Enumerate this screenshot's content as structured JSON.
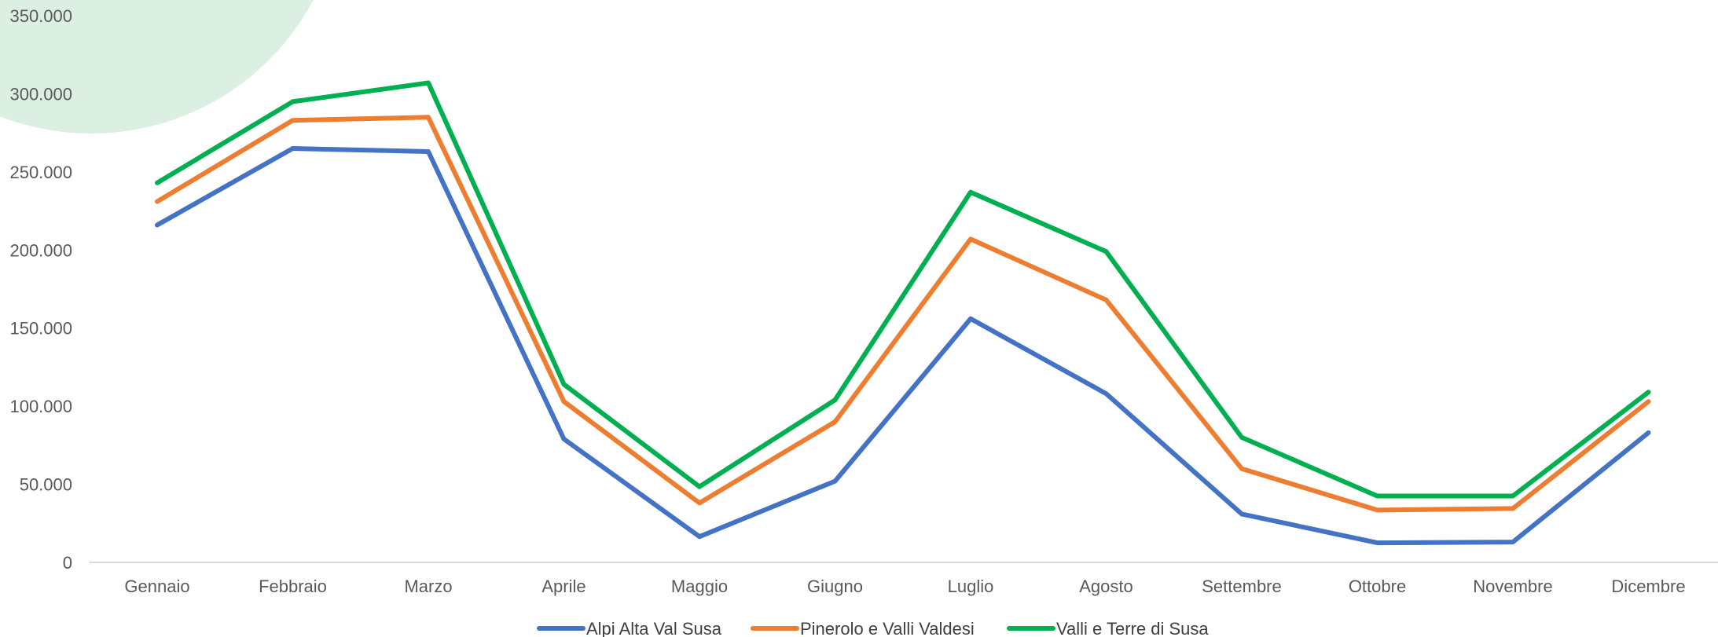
{
  "chart_data": {
    "type": "line",
    "categories": [
      "Gennaio",
      "Febbraio",
      "Marzo",
      "Aprile",
      "Maggio",
      "Giugno",
      "Luglio",
      "Agosto",
      "Settembre",
      "Ottobre",
      "Novembre",
      "Dicembre"
    ],
    "series": [
      {
        "name": "Alpi Alta Val Susa",
        "color": "#4472C4",
        "values": [
          216000,
          265000,
          263000,
          79000,
          16500,
          52000,
          156000,
          108000,
          31000,
          12500,
          13000,
          83000
        ]
      },
      {
        "name": "Pinerolo e Valli Valdesi",
        "color": "#ED7D31",
        "values": [
          231000,
          283000,
          285000,
          103000,
          38000,
          90000,
          207000,
          168000,
          60000,
          33500,
          34500,
          103000
        ]
      },
      {
        "name": "Valli e Terre di Susa",
        "color": "#00B050",
        "values": [
          243000,
          295000,
          307000,
          114000,
          48500,
          104000,
          237000,
          199000,
          80000,
          42500,
          42500,
          109000
        ]
      }
    ],
    "yticks": [
      "0",
      "50.000",
      "100.000",
      "150.000",
      "200.000",
      "250.000",
      "300.000",
      "350.000"
    ],
    "ylim": [
      0,
      350000
    ],
    "title": "",
    "xlabel": "",
    "ylabel": "",
    "grid": false,
    "legend_position": "bottom",
    "decoration_color": "#DCEFE3"
  }
}
